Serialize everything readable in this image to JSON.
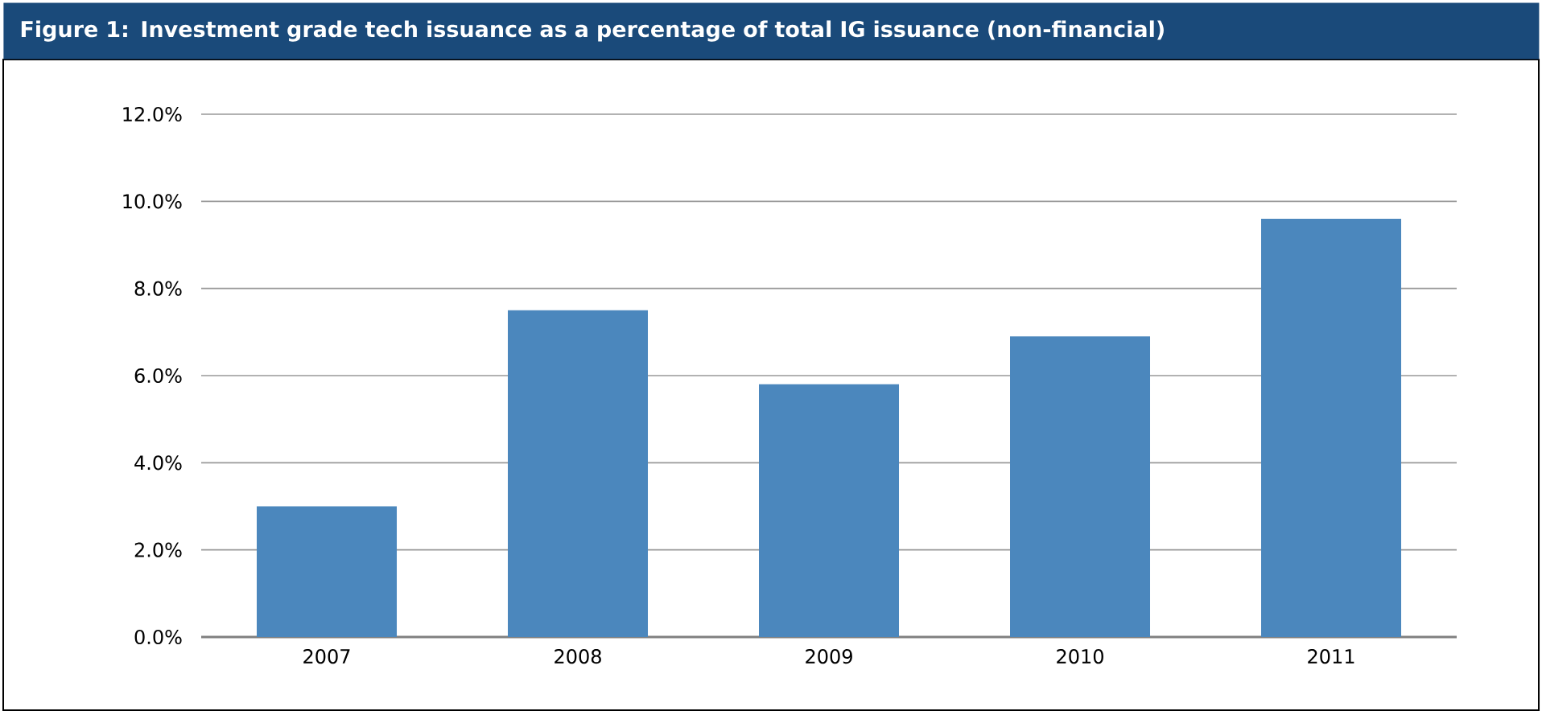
{
  "chart_data": {
    "type": "bar",
    "title": "Figure 1: Investment grade tech issuance as a percentage of total IG issuance (non-financial)",
    "categories": [
      "2007",
      "2008",
      "2009",
      "2010",
      "2011"
    ],
    "values": [
      3.0,
      7.5,
      5.8,
      6.9,
      9.6
    ],
    "color": "#4b87bd",
    "ylim": [
      0,
      12
    ],
    "yticks": [
      {
        "value": 0,
        "label": "0.0%"
      },
      {
        "value": 2,
        "label": "2.0%"
      },
      {
        "value": 4,
        "label": "4.0%"
      },
      {
        "value": 6,
        "label": "6.0%"
      },
      {
        "value": 8,
        "label": "8.0%"
      },
      {
        "value": 10,
        "label": "10.0%"
      },
      {
        "value": 12,
        "label": "12.0%"
      }
    ],
    "grid": "y"
  }
}
